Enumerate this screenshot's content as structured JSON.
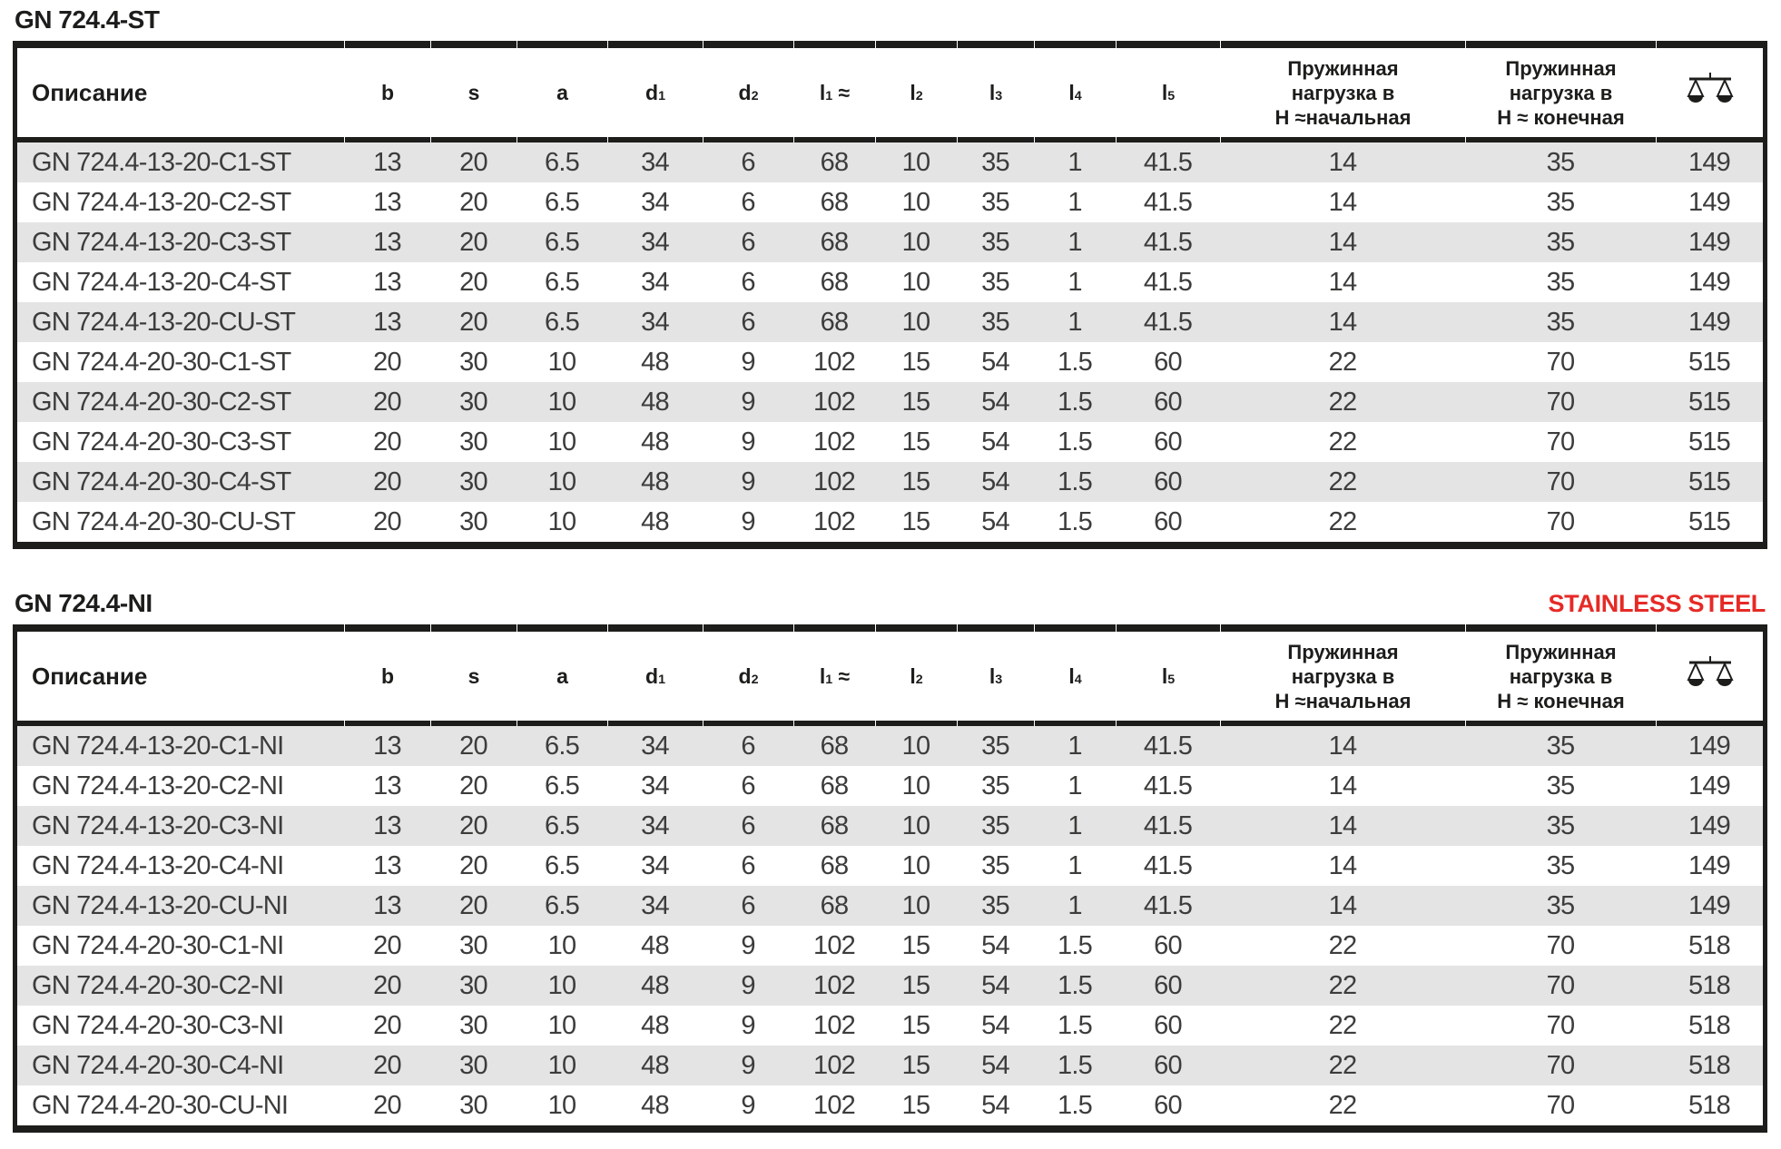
{
  "colors": {
    "accent_red": "#e62a26",
    "table_line_black": "#1d1d1b",
    "row_stripe_gray": "#e4e4e4",
    "data_text_gray": "#3c3c3b"
  },
  "tables": [
    {
      "title": "GN 724.4-ST",
      "columns": [
        {
          "type": "text",
          "key": "description",
          "label": "Описание"
        },
        {
          "type": "dim",
          "key": "b",
          "base": "b"
        },
        {
          "type": "dim",
          "key": "s",
          "base": "s"
        },
        {
          "type": "dim",
          "key": "a",
          "base": "a"
        },
        {
          "type": "dim",
          "key": "d1",
          "base": "d",
          "sub": "1"
        },
        {
          "type": "dim",
          "key": "d2",
          "base": "d",
          "sub": "2"
        },
        {
          "type": "dim",
          "key": "l1",
          "base": "l",
          "sub": "1",
          "approx": " ≈"
        },
        {
          "type": "dim",
          "key": "l2",
          "base": "l",
          "sub": "2"
        },
        {
          "type": "dim",
          "key": "l3",
          "base": "l",
          "sub": "3"
        },
        {
          "type": "dim",
          "key": "l4",
          "base": "l",
          "sub": "4"
        },
        {
          "type": "dim",
          "key": "l5",
          "base": "l",
          "sub": "5"
        },
        {
          "type": "multiline",
          "key": "spring-load-initial",
          "lines": [
            "Пружинная",
            "нагрузка в",
            "Н ≈начальная"
          ]
        },
        {
          "type": "multiline",
          "key": "spring-load-final",
          "lines": [
            "Пружинная",
            "нагрузка в",
            "Н ≈ конечная"
          ]
        },
        {
          "type": "icon",
          "key": "weight",
          "icon": "scale-icon"
        }
      ],
      "rows": [
        [
          "GN 724.4-13-20-C1-ST",
          "13",
          "20",
          "6.5",
          "34",
          "6",
          "68",
          "10",
          "35",
          "1",
          "41.5",
          "14",
          "35",
          "149"
        ],
        [
          "GN 724.4-13-20-C2-ST",
          "13",
          "20",
          "6.5",
          "34",
          "6",
          "68",
          "10",
          "35",
          "1",
          "41.5",
          "14",
          "35",
          "149"
        ],
        [
          "GN 724.4-13-20-C3-ST",
          "13",
          "20",
          "6.5",
          "34",
          "6",
          "68",
          "10",
          "35",
          "1",
          "41.5",
          "14",
          "35",
          "149"
        ],
        [
          "GN 724.4-13-20-C4-ST",
          "13",
          "20",
          "6.5",
          "34",
          "6",
          "68",
          "10",
          "35",
          "1",
          "41.5",
          "14",
          "35",
          "149"
        ],
        [
          "GN 724.4-13-20-CU-ST",
          "13",
          "20",
          "6.5",
          "34",
          "6",
          "68",
          "10",
          "35",
          "1",
          "41.5",
          "14",
          "35",
          "149"
        ],
        [
          "GN 724.4-20-30-C1-ST",
          "20",
          "30",
          "10",
          "48",
          "9",
          "102",
          "15",
          "54",
          "1.5",
          "60",
          "22",
          "70",
          "515"
        ],
        [
          "GN 724.4-20-30-C2-ST",
          "20",
          "30",
          "10",
          "48",
          "9",
          "102",
          "15",
          "54",
          "1.5",
          "60",
          "22",
          "70",
          "515"
        ],
        [
          "GN 724.4-20-30-C3-ST",
          "20",
          "30",
          "10",
          "48",
          "9",
          "102",
          "15",
          "54",
          "1.5",
          "60",
          "22",
          "70",
          "515"
        ],
        [
          "GN 724.4-20-30-C4-ST",
          "20",
          "30",
          "10",
          "48",
          "9",
          "102",
          "15",
          "54",
          "1.5",
          "60",
          "22",
          "70",
          "515"
        ],
        [
          "GN 724.4-20-30-CU-ST",
          "20",
          "30",
          "10",
          "48",
          "9",
          "102",
          "15",
          "54",
          "1.5",
          "60",
          "22",
          "70",
          "515"
        ]
      ]
    },
    {
      "title": "GN 724.4-NI",
      "badge": "STAINLESS STEEL",
      "columns": [
        {
          "type": "text",
          "key": "description",
          "label": "Описание"
        },
        {
          "type": "dim",
          "key": "b",
          "base": "b"
        },
        {
          "type": "dim",
          "key": "s",
          "base": "s"
        },
        {
          "type": "dim",
          "key": "a",
          "base": "a"
        },
        {
          "type": "dim",
          "key": "d1",
          "base": "d",
          "sub": "1"
        },
        {
          "type": "dim",
          "key": "d2",
          "base": "d",
          "sub": "2"
        },
        {
          "type": "dim",
          "key": "l1",
          "base": "l",
          "sub": "1",
          "approx": " ≈"
        },
        {
          "type": "dim",
          "key": "l2",
          "base": "l",
          "sub": "2"
        },
        {
          "type": "dim",
          "key": "l3",
          "base": "l",
          "sub": "3"
        },
        {
          "type": "dim",
          "key": "l4",
          "base": "l",
          "sub": "4"
        },
        {
          "type": "dim",
          "key": "l5",
          "base": "l",
          "sub": "5"
        },
        {
          "type": "multiline",
          "key": "spring-load-initial",
          "lines": [
            "Пружинная",
            "нагрузка в",
            "Н ≈начальная"
          ]
        },
        {
          "type": "multiline",
          "key": "spring-load-final",
          "lines": [
            "Пружинная",
            "нагрузка в",
            "Н ≈ конечная"
          ]
        },
        {
          "type": "icon",
          "key": "weight",
          "icon": "scale-icon"
        }
      ],
      "rows": [
        [
          "GN 724.4-13-20-C1-NI",
          "13",
          "20",
          "6.5",
          "34",
          "6",
          "68",
          "10",
          "35",
          "1",
          "41.5",
          "14",
          "35",
          "149"
        ],
        [
          "GN 724.4-13-20-C2-NI",
          "13",
          "20",
          "6.5",
          "34",
          "6",
          "68",
          "10",
          "35",
          "1",
          "41.5",
          "14",
          "35",
          "149"
        ],
        [
          "GN 724.4-13-20-C3-NI",
          "13",
          "20",
          "6.5",
          "34",
          "6",
          "68",
          "10",
          "35",
          "1",
          "41.5",
          "14",
          "35",
          "149"
        ],
        [
          "GN 724.4-13-20-C4-NI",
          "13",
          "20",
          "6.5",
          "34",
          "6",
          "68",
          "10",
          "35",
          "1",
          "41.5",
          "14",
          "35",
          "149"
        ],
        [
          "GN 724.4-13-20-CU-NI",
          "13",
          "20",
          "6.5",
          "34",
          "6",
          "68",
          "10",
          "35",
          "1",
          "41.5",
          "14",
          "35",
          "149"
        ],
        [
          "GN 724.4-20-30-C1-NI",
          "20",
          "30",
          "10",
          "48",
          "9",
          "102",
          "15",
          "54",
          "1.5",
          "60",
          "22",
          "70",
          "518"
        ],
        [
          "GN 724.4-20-30-C2-NI",
          "20",
          "30",
          "10",
          "48",
          "9",
          "102",
          "15",
          "54",
          "1.5",
          "60",
          "22",
          "70",
          "518"
        ],
        [
          "GN 724.4-20-30-C3-NI",
          "20",
          "30",
          "10",
          "48",
          "9",
          "102",
          "15",
          "54",
          "1.5",
          "60",
          "22",
          "70",
          "518"
        ],
        [
          "GN 724.4-20-30-C4-NI",
          "20",
          "30",
          "10",
          "48",
          "9",
          "102",
          "15",
          "54",
          "1.5",
          "60",
          "22",
          "70",
          "518"
        ],
        [
          "GN 724.4-20-30-CU-NI",
          "20",
          "30",
          "10",
          "48",
          "9",
          "102",
          "15",
          "54",
          "1.5",
          "60",
          "22",
          "70",
          "518"
        ]
      ]
    }
  ]
}
